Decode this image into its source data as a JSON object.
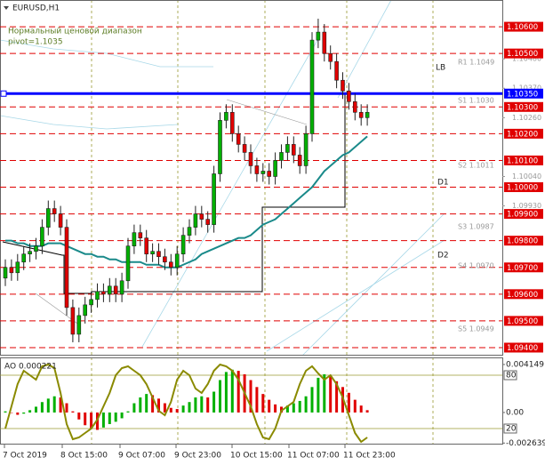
{
  "chart_data": [
    {
      "type": "candlestick",
      "title": "EURUSD,H1",
      "subtitle": "Нормальный ценовой диапазон",
      "note": "pivot=1.1035",
      "ylim": [
        1.0937,
        1.107
      ],
      "yticks": [
        {
          "value": 1.106,
          "label": "1.10600"
        },
        {
          "value": 1.105,
          "label": "1.10500"
        },
        {
          "value": 1.103,
          "label": "1.10300"
        },
        {
          "value": 1.102,
          "label": "1.10200"
        },
        {
          "value": 1.101,
          "label": "1.10100"
        },
        {
          "value": 1.1,
          "label": "1.10000"
        },
        {
          "value": 1.099,
          "label": "1.09900"
        },
        {
          "value": 1.098,
          "label": "1.09800"
        },
        {
          "value": 1.097,
          "label": "1.09700"
        },
        {
          "value": 1.096,
          "label": "1.09600"
        },
        {
          "value": 1.095,
          "label": "1.09500"
        },
        {
          "value": 1.094,
          "label": "1.09400"
        }
      ],
      "minor_yticks": [
        {
          "value": 1.1048,
          "label": "1.10480"
        },
        {
          "value": 1.1037,
          "label": "1.10370"
        },
        {
          "value": 1.1026,
          "label": "1.10260"
        },
        {
          "value": 1.1004,
          "label": "1.10040"
        },
        {
          "value": 1.0993,
          "label": "1.09930"
        }
      ],
      "pivot": {
        "value": 1.1035,
        "label": "1.10350",
        "color": "#0000ff"
      },
      "level_color": "#e00000",
      "up_color": "#00b000",
      "down_color": "#e00000",
      "time_labels": [
        "7 Oct 2019",
        "8 Oct 15:00",
        "9 Oct 07:00",
        "9 Oct 23:00",
        "10 Oct 15:00",
        "11 Oct 07:00",
        "11 Oct 23:00"
      ],
      "annotations": [
        "LB",
        "D1",
        "D2",
        "R1 1.1049",
        "S1 1.1030",
        "S2 1.1011",
        "S3 1.0987",
        "S4 1.0970",
        "S5 1.0949"
      ],
      "open": [
        1.0966,
        1.097,
        1.0968,
        1.0972,
        1.0975,
        1.0976,
        1.0978,
        1.0985,
        1.0992,
        1.099,
        1.0985,
        1.0955,
        1.0945,
        1.0952,
        1.0956,
        1.0958,
        1.0961,
        1.096,
        1.0963,
        1.096,
        1.0965,
        1.0978,
        1.0983,
        1.0981,
        1.0975,
        1.0976,
        1.0974,
        1.0972,
        1.097,
        1.0975,
        1.0982,
        1.0985,
        1.099,
        1.0988,
        1.0986,
        1.1005,
        1.1025,
        1.1028,
        1.102,
        1.1016,
        1.1013,
        1.1008,
        1.1005,
        1.1006,
        1.1004,
        1.101,
        1.1013,
        1.1016,
        1.1012,
        1.1008,
        1.102,
        1.1055,
        1.1058,
        1.105,
        1.1047,
        1.104,
        1.1036,
        1.1032,
        1.1028,
        1.1026
      ],
      "high": [
        1.0973,
        1.0973,
        1.0975,
        1.0978,
        1.0979,
        1.0981,
        1.0988,
        1.0995,
        1.0995,
        1.0993,
        1.0988,
        1.0958,
        1.0955,
        1.0959,
        1.0961,
        1.0964,
        1.0964,
        1.0966,
        1.0966,
        1.0968,
        1.0981,
        1.0986,
        1.0986,
        1.0984,
        1.0979,
        1.0979,
        1.0977,
        1.0975,
        1.0978,
        1.0985,
        1.0988,
        1.0993,
        1.0993,
        1.0991,
        1.1008,
        1.1028,
        1.1031,
        1.1031,
        1.1023,
        1.1019,
        1.1016,
        1.1011,
        1.1009,
        1.1009,
        1.1013,
        1.1016,
        1.1019,
        1.1019,
        1.1015,
        1.1023,
        1.1058,
        1.1063,
        1.1061,
        1.1053,
        1.105,
        1.1043,
        1.1039,
        1.1035,
        1.1031,
        1.1031
      ],
      "low": [
        1.0963,
        1.0965,
        1.0965,
        1.0969,
        1.0972,
        1.0973,
        1.0975,
        1.0982,
        1.0987,
        1.0982,
        1.0952,
        1.0942,
        1.0942,
        1.0949,
        1.0953,
        1.0955,
        1.0957,
        1.0957,
        1.0957,
        1.0957,
        1.0962,
        1.0975,
        1.0978,
        1.0972,
        1.0972,
        1.0971,
        1.0969,
        1.0967,
        1.0967,
        1.0972,
        1.0979,
        1.0982,
        1.0985,
        1.0983,
        1.0983,
        1.1002,
        1.1022,
        1.1017,
        1.1013,
        1.101,
        1.1005,
        1.1002,
        1.1002,
        1.1001,
        1.1001,
        1.1007,
        1.101,
        1.1009,
        1.1005,
        1.1005,
        1.1017,
        1.1052,
        1.1047,
        1.1044,
        1.1037,
        1.1033,
        1.1029,
        1.1025,
        1.1023,
        1.1023
      ],
      "close": [
        1.097,
        1.0968,
        1.0972,
        1.0975,
        1.0976,
        1.0978,
        1.0985,
        1.0992,
        1.099,
        1.0985,
        1.0955,
        1.0945,
        1.0952,
        1.0956,
        1.0958,
        1.0961,
        1.096,
        1.0963,
        1.096,
        1.0965,
        1.0978,
        1.0983,
        1.0981,
        1.0975,
        1.0976,
        1.0974,
        1.0972,
        1.097,
        1.0975,
        1.0982,
        1.0985,
        1.099,
        1.0988,
        1.0986,
        1.1005,
        1.1025,
        1.1028,
        1.102,
        1.1016,
        1.1013,
        1.1008,
        1.1005,
        1.1006,
        1.1004,
        1.101,
        1.1013,
        1.1016,
        1.1012,
        1.1008,
        1.102,
        1.1055,
        1.1058,
        1.105,
        1.1047,
        1.104,
        1.1036,
        1.1032,
        1.1028,
        1.1026,
        1.1028
      ],
      "ma": {
        "color": "#1a8a8a",
        "values": [
          1.098,
          1.098,
          1.0979,
          1.0979,
          1.0978,
          1.0978,
          1.0978,
          1.0979,
          1.0979,
          1.0979,
          1.0978,
          1.0977,
          1.0976,
          1.0975,
          1.0975,
          1.0974,
          1.0974,
          1.0973,
          1.0973,
          1.0972,
          1.0972,
          1.0972,
          1.0972,
          1.0971,
          1.0971,
          1.0971,
          1.097,
          1.097,
          1.097,
          1.0971,
          1.0972,
          1.0973,
          1.0975,
          1.0976,
          1.0977,
          1.0978,
          1.0979,
          1.098,
          1.0981,
          1.0981,
          1.0982,
          1.0984,
          1.0986,
          1.0987,
          1.0988,
          1.099,
          1.0992,
          1.0994,
          1.0996,
          1.0998,
          1.1,
          1.1003,
          1.1006,
          1.1008,
          1.101,
          1.1012,
          1.1013,
          1.1015,
          1.1017,
          1.1019
        ]
      }
    },
    {
      "type": "oscillator",
      "title": "AO 0.000221",
      "ylim": [
        -0.00277,
        0.00476
      ],
      "yticks": [
        0.004149,
        {
          "value": 0,
          "label": "0.00"
        },
        -0.002639
      ],
      "y2lim": [
        2,
        100
      ],
      "y2ticks": [
        80,
        20
      ],
      "up_color": "#00b000",
      "down_color": "#e00000",
      "values": [
        0.0001,
        0.0,
        -0.0002,
        -0.0001,
        0.0002,
        0.0005,
        0.0009,
        0.0012,
        0.0014,
        0.0013,
        0.0008,
        0.0001,
        -0.0006,
        -0.0011,
        -0.0014,
        -0.0015,
        -0.0013,
        -0.001,
        -0.0008,
        -0.0005,
        0.0001,
        0.0008,
        0.0013,
        0.0016,
        0.0015,
        0.0012,
        0.0008,
        0.0004,
        0.0003,
        0.0006,
        0.0009,
        0.0013,
        0.0014,
        0.0013,
        0.0018,
        0.0028,
        0.0035,
        0.0037,
        0.0036,
        0.0033,
        0.0028,
        0.0022,
        0.0016,
        0.0011,
        0.0007,
        0.0005,
        0.0006,
        0.0008,
        0.001,
        0.0014,
        0.0022,
        0.003,
        0.0033,
        0.0031,
        0.0027,
        0.0022,
        0.0017,
        0.0011,
        0.0006,
        0.0002
      ],
      "line": {
        "color": "#8a8a00",
        "axis": "y2",
        "values": [
          20,
          45,
          70,
          85,
          80,
          75,
          90,
          92,
          88,
          60,
          25,
          8,
          10,
          15,
          20,
          30,
          45,
          60,
          80,
          88,
          90,
          85,
          80,
          70,
          55,
          40,
          35,
          50,
          75,
          85,
          80,
          65,
          60,
          70,
          85,
          92,
          90,
          85,
          75,
          60,
          45,
          25,
          10,
          8,
          20,
          40,
          45,
          50,
          70,
          85,
          90,
          82,
          75,
          80,
          70,
          55,
          35,
          15,
          5,
          10
        ]
      }
    }
  ]
}
